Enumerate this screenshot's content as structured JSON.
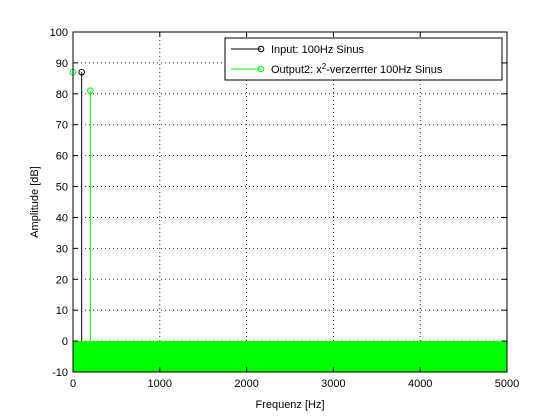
{
  "chart_data": {
    "type": "line",
    "title": "",
    "xlabel": "Frequenz [Hz]",
    "ylabel": "Amplitude [dB]",
    "xlim": [
      0,
      5000
    ],
    "ylim": [
      -10,
      100
    ],
    "xticks": [
      0,
      1000,
      2000,
      3000,
      4000,
      5000
    ],
    "yticks": [
      -10,
      0,
      10,
      20,
      30,
      40,
      50,
      60,
      70,
      80,
      90,
      100
    ],
    "grid": true,
    "legend_position": "top-right",
    "noise_floor": {
      "color": "#00ff00",
      "from": -10,
      "to": 0
    },
    "series": [
      {
        "name": "Input: 100Hz Sinus",
        "name_main": "Input: 100Hz Sinus",
        "name_sup": "",
        "name_rest": "",
        "color": "#000000",
        "marker": "circle",
        "x": [
          100
        ],
        "y": [
          87
        ]
      },
      {
        "name": "Output2: x2-verzerrter 100Hz Sinus",
        "name_main": "Output2: x",
        "name_sup": "2",
        "name_rest": "-verzerrter 100Hz Sinus",
        "color": "#00ff00",
        "marker": "circle",
        "x": [
          0,
          200
        ],
        "y": [
          87,
          81
        ]
      }
    ]
  }
}
